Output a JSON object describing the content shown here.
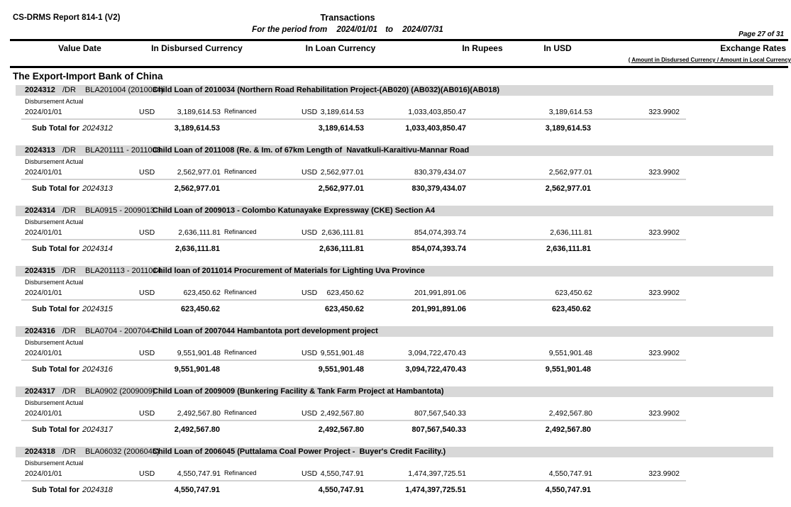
{
  "colors": {
    "group_bar": "#d8d8d8"
  },
  "report": {
    "id_label": "CS-DRMS Report 814-1 (V2)",
    "title": "Transactions",
    "period_prefix": "For the period from",
    "period_from": "2024/01/01",
    "period_to_label": "to",
    "period_to": "2024/07/31",
    "page_label": "Page 27 of 31"
  },
  "columns": {
    "value_date": "Value Date",
    "disbursed": "In Disbursed Currency",
    "loan": "In Loan Currency",
    "rupees": "In Rupees",
    "usd": "In USD",
    "exchange": "Exchange Rates",
    "exchange_note": "( Amount in Disdursed Currency / Amount in Local Currency"
  },
  "section": {
    "title": "The Export-Import Bank of China"
  },
  "groups": [
    {
      "id": "2024312",
      "dr": "/DR",
      "code": "BLA201004 (2010034)",
      "title": "Child Loan of 2010034 (Northern Road Rehabilitation Project-(AB020) (AB032)(AB016)(AB018)",
      "type_label": "Disbursement Actual",
      "row": {
        "date": "2024/01/01",
        "cur1": "USD",
        "amt1": "3,189,614.53",
        "note": "Refinanced",
        "cur2": "USD",
        "amt2": "3,189,614.53",
        "rupees": "1,033,403,850.47",
        "usd": "3,189,614.53",
        "rate": "323.9902"
      },
      "subtotal": {
        "label": "Sub Total for",
        "id": "2024312",
        "amt1": "3,189,614.53",
        "amt2": "3,189,614.53",
        "rupees": "1,033,403,850.47",
        "usd": "3,189,614.53"
      }
    },
    {
      "id": "2024313",
      "dr": "/DR",
      "code": "BLA201111 - 2011008",
      "title": "Child Loan of 2011008 (Re. & Im. of 67km Length of  Navatkuli-Karaitivu-Mannar Road",
      "type_label": "Disbursement Actual",
      "row": {
        "date": "2024/01/01",
        "cur1": "USD",
        "amt1": "2,562,977.01",
        "note": "Refinanced",
        "cur2": "USD",
        "amt2": "2,562,977.01",
        "rupees": "830,379,434.07",
        "usd": "2,562,977.01",
        "rate": "323.9902"
      },
      "subtotal": {
        "label": "Sub Total for",
        "id": "2024313",
        "amt1": "2,562,977.01",
        "amt2": "2,562,977.01",
        "rupees": "830,379,434.07",
        "usd": "2,562,977.01"
      }
    },
    {
      "id": "2024314",
      "dr": "/DR",
      "code": "BLA0915 - 2009013",
      "title": "Child Loan of 2009013 - Colombo Katunayake Expressway (CKE) Section A4",
      "type_label": "Disbursement Actual",
      "row": {
        "date": "2024/01/01",
        "cur1": "USD",
        "amt1": "2,636,111.81",
        "note": "Refinanced",
        "cur2": "USD",
        "amt2": "2,636,111.81",
        "rupees": "854,074,393.74",
        "usd": "2,636,111.81",
        "rate": "323.9902"
      },
      "subtotal": {
        "label": "Sub Total for",
        "id": "2024314",
        "amt1": "2,636,111.81",
        "amt2": "2,636,111.81",
        "rupees": "854,074,393.74",
        "usd": "2,636,111.81"
      }
    },
    {
      "id": "2024315",
      "dr": "/DR",
      "code": "BLA201113 - 2011014",
      "title": "Child loan of 2011014 Procurement of Materials for Lighting Uva Province",
      "type_label": "Disbursement Actual",
      "row": {
        "date": "2024/01/01",
        "cur1": "USD",
        "amt1": "623,450.62",
        "note": "Refinanced",
        "cur2": "USD",
        "amt2": "623,450.62",
        "rupees": "201,991,891.06",
        "usd": "623,450.62",
        "rate": "323.9902"
      },
      "subtotal": {
        "label": "Sub Total for",
        "id": "2024315",
        "amt1": "623,450.62",
        "amt2": "623,450.62",
        "rupees": "201,991,891.06",
        "usd": "623,450.62"
      }
    },
    {
      "id": "2024316",
      "dr": "/DR",
      "code": "BLA0704 - 2007044",
      "title": "Child Loan of 2007044 Hambantota port development project",
      "type_label": "Disbursement Actual",
      "row": {
        "date": "2024/01/01",
        "cur1": "USD",
        "amt1": "9,551,901.48",
        "note": "Refinanced",
        "cur2": "USD",
        "amt2": "9,551,901.48",
        "rupees": "3,094,722,470.43",
        "usd": "9,551,901.48",
        "rate": "323.9902"
      },
      "subtotal": {
        "label": "Sub Total for",
        "id": "2024316",
        "amt1": "9,551,901.48",
        "amt2": "9,551,901.48",
        "rupees": "3,094,722,470.43",
        "usd": "9,551,901.48"
      }
    },
    {
      "id": "2024317",
      "dr": "/DR",
      "code": "BLA0902 (2009009)",
      "title": "Child Loan of 2009009 (Bunkering Facility & Tank Farm Project at Hambantota)",
      "type_label": "Disbursement Actual",
      "row": {
        "date": "2024/01/01",
        "cur1": "USD",
        "amt1": "2,492,567.80",
        "note": "Refinanced",
        "cur2": "USD",
        "amt2": "2,492,567.80",
        "rupees": "807,567,540.33",
        "usd": "2,492,567.80",
        "rate": "323.9902"
      },
      "subtotal": {
        "label": "Sub Total for",
        "id": "2024317",
        "amt1": "2,492,567.80",
        "amt2": "2,492,567.80",
        "rupees": "807,567,540.33",
        "usd": "2,492,567.80"
      }
    },
    {
      "id": "2024318",
      "dr": "/DR",
      "code": "BLA06032 (2006045)",
      "title": "Child Loan of 2006045 (Puttalama Coal Power Project -  Buyer's Credit Facility.)",
      "type_label": "Disbursement Actual",
      "row": {
        "date": "2024/01/01",
        "cur1": "USD",
        "amt1": "4,550,747.91",
        "note": "Refinanced",
        "cur2": "USD",
        "amt2": "4,550,747.91",
        "rupees": "1,474,397,725.51",
        "usd": "4,550,747.91",
        "rate": "323.9902"
      },
      "subtotal": {
        "label": "Sub Total for",
        "id": "2024318",
        "amt1": "4,550,747.91",
        "amt2": "4,550,747.91",
        "rupees": "1,474,397,725.51",
        "usd": "4,550,747.91"
      }
    }
  ]
}
